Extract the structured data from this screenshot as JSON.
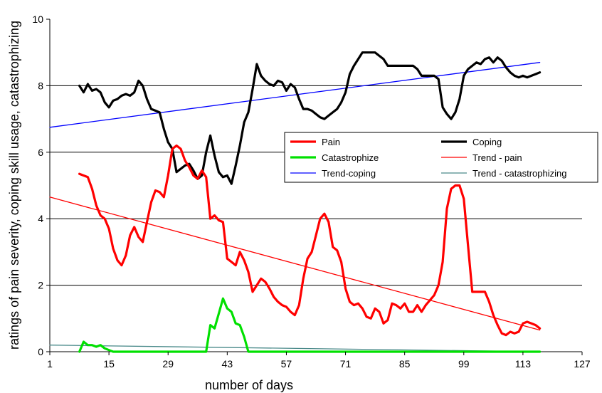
{
  "chart_data": {
    "type": "line",
    "xlabel": "number of days",
    "ylabel": "ratings of pain severity, coping skill usage, catastrophizing",
    "xlim": [
      1,
      127
    ],
    "ylim": [
      0,
      10
    ],
    "xticks": [
      1,
      15,
      29,
      43,
      57,
      71,
      85,
      99,
      113,
      127
    ],
    "yticks": [
      0,
      2,
      4,
      6,
      8,
      10
    ],
    "grid": "horizontal",
    "legend": "right-center",
    "legend_labels": [
      "Pain",
      "Coping",
      "Catastrophize",
      "Trend - pain",
      "Trend-coping",
      "Trend - catastrophizing"
    ],
    "series": [
      {
        "name": "Pain",
        "color": "#ff0000",
        "style": "thick",
        "points": [
          [
            8,
            5.35
          ],
          [
            9,
            5.3
          ],
          [
            10,
            5.25
          ],
          [
            11,
            4.9
          ],
          [
            12,
            4.4
          ],
          [
            13,
            4.1
          ],
          [
            14,
            4.0
          ],
          [
            15,
            3.7
          ],
          [
            16,
            3.1
          ],
          [
            17,
            2.75
          ],
          [
            18,
            2.6
          ],
          [
            19,
            2.9
          ],
          [
            20,
            3.5
          ],
          [
            21,
            3.75
          ],
          [
            22,
            3.45
          ],
          [
            23,
            3.3
          ],
          [
            24,
            3.9
          ],
          [
            25,
            4.5
          ],
          [
            26,
            4.85
          ],
          [
            27,
            4.8
          ],
          [
            28,
            4.65
          ],
          [
            29,
            5.3
          ],
          [
            30,
            6.1
          ],
          [
            31,
            6.2
          ],
          [
            32,
            6.1
          ],
          [
            33,
            5.75
          ],
          [
            34,
            5.55
          ],
          [
            35,
            5.3
          ],
          [
            36,
            5.2
          ],
          [
            37,
            5.45
          ],
          [
            38,
            5.25
          ],
          [
            39,
            4.0
          ],
          [
            40,
            4.1
          ],
          [
            41,
            3.95
          ],
          [
            42,
            3.9
          ],
          [
            43,
            2.8
          ],
          [
            44,
            2.7
          ],
          [
            45,
            2.6
          ],
          [
            46,
            3.0
          ],
          [
            47,
            2.75
          ],
          [
            48,
            2.4
          ],
          [
            49,
            1.8
          ],
          [
            50,
            2.0
          ],
          [
            51,
            2.2
          ],
          [
            52,
            2.1
          ],
          [
            53,
            1.9
          ],
          [
            54,
            1.65
          ],
          [
            55,
            1.5
          ],
          [
            56,
            1.4
          ],
          [
            57,
            1.35
          ],
          [
            58,
            1.2
          ],
          [
            59,
            1.1
          ],
          [
            60,
            1.4
          ],
          [
            61,
            2.2
          ],
          [
            62,
            2.8
          ],
          [
            63,
            3.0
          ],
          [
            64,
            3.5
          ],
          [
            65,
            4.0
          ],
          [
            66,
            4.15
          ],
          [
            67,
            3.9
          ],
          [
            68,
            3.15
          ],
          [
            69,
            3.05
          ],
          [
            70,
            2.7
          ],
          [
            71,
            1.9
          ],
          [
            72,
            1.5
          ],
          [
            73,
            1.4
          ],
          [
            74,
            1.45
          ],
          [
            75,
            1.3
          ],
          [
            76,
            1.05
          ],
          [
            77,
            1.0
          ],
          [
            78,
            1.3
          ],
          [
            79,
            1.2
          ],
          [
            80,
            0.85
          ],
          [
            81,
            0.95
          ],
          [
            82,
            1.45
          ],
          [
            83,
            1.4
          ],
          [
            84,
            1.3
          ],
          [
            85,
            1.45
          ],
          [
            86,
            1.2
          ],
          [
            87,
            1.2
          ],
          [
            88,
            1.4
          ],
          [
            89,
            1.2
          ],
          [
            90,
            1.4
          ],
          [
            91,
            1.55
          ],
          [
            92,
            1.7
          ],
          [
            93,
            2.0
          ],
          [
            94,
            2.7
          ],
          [
            95,
            4.3
          ],
          [
            96,
            4.9
          ],
          [
            97,
            5.0
          ],
          [
            98,
            5.0
          ],
          [
            99,
            4.6
          ],
          [
            100,
            3.2
          ],
          [
            101,
            1.8
          ],
          [
            102,
            1.8
          ],
          [
            103,
            1.8
          ],
          [
            104,
            1.8
          ],
          [
            105,
            1.5
          ],
          [
            106,
            1.1
          ],
          [
            107,
            0.8
          ],
          [
            108,
            0.55
          ],
          [
            109,
            0.5
          ],
          [
            110,
            0.6
          ],
          [
            111,
            0.55
          ],
          [
            112,
            0.6
          ],
          [
            113,
            0.85
          ],
          [
            114,
            0.9
          ],
          [
            115,
            0.85
          ],
          [
            116,
            0.8
          ],
          [
            117,
            0.7
          ]
        ]
      },
      {
        "name": "Coping",
        "color": "#000000",
        "style": "thick",
        "points": [
          [
            8,
            8.0
          ],
          [
            9,
            7.8
          ],
          [
            10,
            8.05
          ],
          [
            11,
            7.85
          ],
          [
            12,
            7.9
          ],
          [
            13,
            7.8
          ],
          [
            14,
            7.5
          ],
          [
            15,
            7.35
          ],
          [
            16,
            7.55
          ],
          [
            17,
            7.6
          ],
          [
            18,
            7.7
          ],
          [
            19,
            7.75
          ],
          [
            20,
            7.7
          ],
          [
            21,
            7.8
          ],
          [
            22,
            8.15
          ],
          [
            23,
            8.0
          ],
          [
            24,
            7.6
          ],
          [
            25,
            7.3
          ],
          [
            26,
            7.25
          ],
          [
            27,
            7.2
          ],
          [
            28,
            6.7
          ],
          [
            29,
            6.3
          ],
          [
            30,
            6.1
          ],
          [
            31,
            5.4
          ],
          [
            32,
            5.5
          ],
          [
            33,
            5.6
          ],
          [
            34,
            5.65
          ],
          [
            35,
            5.45
          ],
          [
            36,
            5.2
          ],
          [
            37,
            5.3
          ],
          [
            38,
            6.0
          ],
          [
            39,
            6.5
          ],
          [
            40,
            5.9
          ],
          [
            41,
            5.4
          ],
          [
            42,
            5.25
          ],
          [
            43,
            5.3
          ],
          [
            44,
            5.05
          ],
          [
            45,
            5.6
          ],
          [
            46,
            6.2
          ],
          [
            47,
            6.9
          ],
          [
            48,
            7.2
          ],
          [
            49,
            7.9
          ],
          [
            50,
            8.65
          ],
          [
            51,
            8.3
          ],
          [
            52,
            8.15
          ],
          [
            53,
            8.05
          ],
          [
            54,
            8.0
          ],
          [
            55,
            8.15
          ],
          [
            56,
            8.1
          ],
          [
            57,
            7.85
          ],
          [
            58,
            8.05
          ],
          [
            59,
            7.95
          ],
          [
            60,
            7.6
          ],
          [
            61,
            7.3
          ],
          [
            62,
            7.3
          ],
          [
            63,
            7.25
          ],
          [
            64,
            7.15
          ],
          [
            65,
            7.05
          ],
          [
            66,
            7.0
          ],
          [
            67,
            7.1
          ],
          [
            68,
            7.2
          ],
          [
            69,
            7.3
          ],
          [
            70,
            7.5
          ],
          [
            71,
            7.8
          ],
          [
            72,
            8.35
          ],
          [
            73,
            8.6
          ],
          [
            74,
            8.8
          ],
          [
            75,
            9.0
          ],
          [
            76,
            9.0
          ],
          [
            77,
            9.0
          ],
          [
            78,
            9.0
          ],
          [
            79,
            8.9
          ],
          [
            80,
            8.8
          ],
          [
            81,
            8.6
          ],
          [
            82,
            8.6
          ],
          [
            83,
            8.6
          ],
          [
            84,
            8.6
          ],
          [
            85,
            8.6
          ],
          [
            86,
            8.6
          ],
          [
            87,
            8.6
          ],
          [
            88,
            8.5
          ],
          [
            89,
            8.3
          ],
          [
            90,
            8.3
          ],
          [
            91,
            8.3
          ],
          [
            92,
            8.3
          ],
          [
            93,
            8.2
          ],
          [
            94,
            7.35
          ],
          [
            95,
            7.15
          ],
          [
            96,
            7.0
          ],
          [
            97,
            7.2
          ],
          [
            98,
            7.6
          ],
          [
            99,
            8.3
          ],
          [
            100,
            8.5
          ],
          [
            101,
            8.6
          ],
          [
            102,
            8.7
          ],
          [
            103,
            8.65
          ],
          [
            104,
            8.8
          ],
          [
            105,
            8.85
          ],
          [
            106,
            8.7
          ],
          [
            107,
            8.85
          ],
          [
            108,
            8.75
          ],
          [
            109,
            8.55
          ],
          [
            110,
            8.4
          ],
          [
            111,
            8.3
          ],
          [
            112,
            8.25
          ],
          [
            113,
            8.3
          ],
          [
            114,
            8.25
          ],
          [
            115,
            8.3
          ],
          [
            116,
            8.35
          ],
          [
            117,
            8.4
          ]
        ]
      },
      {
        "name": "Catastrophize",
        "color": "#00e000",
        "style": "thick",
        "points": [
          [
            8,
            0.0
          ],
          [
            9,
            0.3
          ],
          [
            10,
            0.2
          ],
          [
            11,
            0.2
          ],
          [
            12,
            0.15
          ],
          [
            13,
            0.2
          ],
          [
            14,
            0.1
          ],
          [
            15,
            0.05
          ],
          [
            16,
            0.0
          ],
          [
            38,
            0.0
          ],
          [
            39,
            0.8
          ],
          [
            40,
            0.7
          ],
          [
            41,
            1.15
          ],
          [
            42,
            1.6
          ],
          [
            43,
            1.3
          ],
          [
            44,
            1.2
          ],
          [
            45,
            0.85
          ],
          [
            46,
            0.8
          ],
          [
            47,
            0.45
          ],
          [
            48,
            0.0
          ],
          [
            117,
            0.0
          ]
        ]
      },
      {
        "name": "Trend - pain",
        "color": "#ff0000",
        "style": "thin",
        "points": [
          [
            1,
            4.65
          ],
          [
            117,
            0.65
          ]
        ]
      },
      {
        "name": "Trend-coping",
        "color": "#0000ff",
        "style": "thin",
        "points": [
          [
            1,
            6.75
          ],
          [
            117,
            8.7
          ]
        ]
      },
      {
        "name": "Trend - catastrophizing",
        "color": "#4a8a8a",
        "style": "thin",
        "points": [
          [
            1,
            0.2
          ],
          [
            117,
            0.0
          ]
        ]
      }
    ]
  }
}
